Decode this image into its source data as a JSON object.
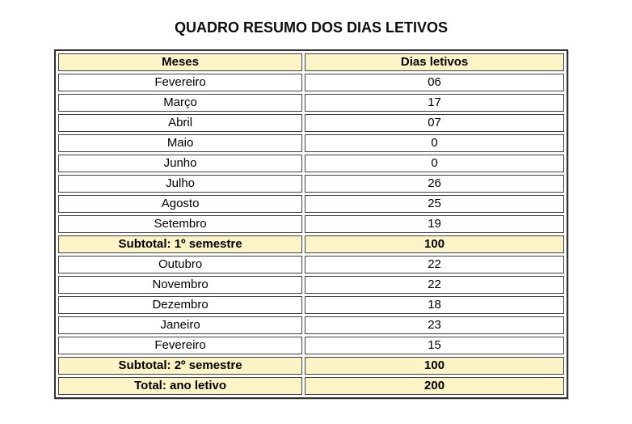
{
  "title": "QUADRO RESUMO DOS DIAS LETIVOS",
  "table": {
    "columns": {
      "month": "Meses",
      "days": "Dias letivos"
    },
    "rows": [
      {
        "month": "Fevereiro",
        "days": "06",
        "type": "data"
      },
      {
        "month": "Março",
        "days": "17",
        "type": "data"
      },
      {
        "month": "Abril",
        "days": "07",
        "type": "data"
      },
      {
        "month": "Maio",
        "days": "0",
        "type": "data"
      },
      {
        "month": "Junho",
        "days": "0",
        "type": "data"
      },
      {
        "month": "Julho",
        "days": "26",
        "type": "data"
      },
      {
        "month": "Agosto",
        "days": "25",
        "type": "data"
      },
      {
        "month": "Setembro",
        "days": "19",
        "type": "data"
      },
      {
        "month": "Subtotal: 1º semestre",
        "days": "100",
        "type": "subtotal"
      },
      {
        "month": "Outubro",
        "days": "22",
        "type": "data"
      },
      {
        "month": "Novembro",
        "days": "22",
        "type": "data"
      },
      {
        "month": "Dezembro",
        "days": "18",
        "type": "data"
      },
      {
        "month": "Janeiro",
        "days": "23",
        "type": "data"
      },
      {
        "month": "Fevereiro",
        "days": "15",
        "type": "data"
      },
      {
        "month": "Subtotal: 2º semestre",
        "days": "100",
        "type": "subtotal"
      },
      {
        "month": "Total: ano letivo",
        "days": "200",
        "type": "total"
      }
    ]
  },
  "colors": {
    "highlight_bg": "#fbf4c7",
    "cell_border": "#3f3f3f",
    "outer_border": "#323232",
    "text": "#000000"
  }
}
